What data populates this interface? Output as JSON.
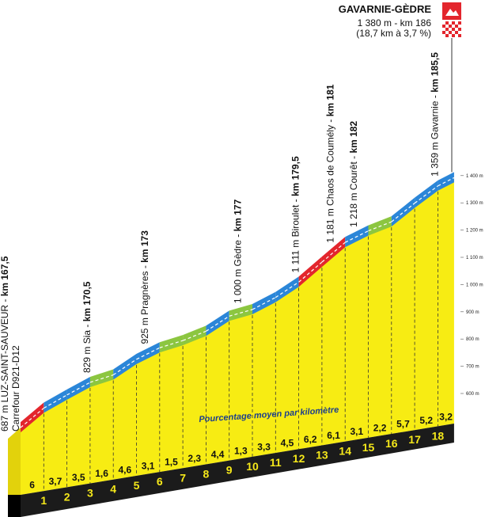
{
  "summit": {
    "name": "GAVARNIE-GÈDRE",
    "elevation_km": "1 380 m - km 186",
    "climb": "(18,7 km à 3,7 %)",
    "climb_length": 18.7
  },
  "subtitle": "Pourcentage moyen par kilomètre",
  "waypoints": [
    {
      "label": "687 m LUZ-SAINT-SAUVEUR - ",
      "km_label": "km 167,5",
      "km": 167.5,
      "elevation": 687,
      "note": "Carrefour D921-D12"
    },
    {
      "label": "829 m Sia - ",
      "km_label": "km 170,5",
      "km": 170.5,
      "elevation": 829
    },
    {
      "label": "925 m Pragnères - ",
      "km_label": "km 173",
      "km": 173,
      "elevation": 925
    },
    {
      "label": "1 000 m Gèdre - ",
      "km_label": "km 177",
      "km": 177,
      "elevation": 1000
    },
    {
      "label": "1 111 m Biroulet - ",
      "km_label": "km 179,5",
      "km": 179.5,
      "elevation": 1111
    },
    {
      "label": "1 181 m Chaos de Coumély - ",
      "km_label": "km 181",
      "km": 181,
      "elevation": 1181
    },
    {
      "label": "1 218 m Courêt - ",
      "km_label": "km 182",
      "km": 182,
      "elevation": 1218
    },
    {
      "label": "1 359 m Gavarnie - ",
      "km_label": "km 185,5",
      "km": 185.5,
      "elevation": 1359
    }
  ],
  "elevation_axis": {
    "ticks": [
      {
        "value": 1400,
        "label": "1 400 m"
      },
      {
        "value": 1300,
        "label": "1 300 m"
      },
      {
        "value": 1200,
        "label": "1 200 m"
      },
      {
        "value": 1100,
        "label": "1 100 m"
      },
      {
        "value": 1000,
        "label": "1 000 m"
      },
      {
        "value": 900,
        "label": "900 m"
      },
      {
        "value": 800,
        "label": "800 m"
      },
      {
        "value": 700,
        "label": "700 m"
      },
      {
        "value": 600,
        "label": "600 m"
      }
    ]
  },
  "segments": [
    {
      "gradient": 6,
      "gradient_label": "6",
      "km": 1,
      "color": "#e3262d"
    },
    {
      "gradient": 3.7,
      "gradient_label": "3,7",
      "km": 2,
      "color": "#2b86d8"
    },
    {
      "gradient": 3.5,
      "gradient_label": "3,5",
      "km": 3,
      "color": "#2b86d8"
    },
    {
      "gradient": 1.6,
      "gradient_label": "1,6",
      "km": 4,
      "color": "#8cc640"
    },
    {
      "gradient": 4.6,
      "gradient_label": "4,6",
      "km": 5,
      "color": "#2b86d8"
    },
    {
      "gradient": 3.1,
      "gradient_label": "3,1",
      "km": 6,
      "color": "#2b86d8"
    },
    {
      "gradient": 1.5,
      "gradient_label": "1,5",
      "km": 7,
      "color": "#8cc640"
    },
    {
      "gradient": 2.3,
      "gradient_label": "2,3",
      "km": 8,
      "color": "#8cc640"
    },
    {
      "gradient": 4.4,
      "gradient_label": "4,4",
      "km": 9,
      "color": "#2b86d8"
    },
    {
      "gradient": 1.3,
      "gradient_label": "1,3",
      "km": 10,
      "color": "#8cc640"
    },
    {
      "gradient": 3.3,
      "gradient_label": "3,3",
      "km": 11,
      "color": "#2b86d8"
    },
    {
      "gradient": 4.5,
      "gradient_label": "4,5",
      "km": 12,
      "color": "#2b86d8"
    },
    {
      "gradient": 6.2,
      "gradient_label": "6,2",
      "km": 13,
      "color": "#e3262d"
    },
    {
      "gradient": 6.1,
      "gradient_label": "6,1",
      "km": 14,
      "color": "#e3262d"
    },
    {
      "gradient": 3.1,
      "gradient_label": "3,1",
      "km": 15,
      "color": "#2b86d8"
    },
    {
      "gradient": 2.2,
      "gradient_label": "2,2",
      "km": 16,
      "color": "#8cc640"
    },
    {
      "gradient": 5.7,
      "gradient_label": "5,7",
      "km": 17,
      "color": "#2b86d8"
    },
    {
      "gradient": 5.2,
      "gradient_label": "5,2",
      "km": 18,
      "color": "#2b86d8"
    },
    {
      "gradient": 3.2,
      "gradient_label": "3,2",
      "color": "#2b86d8"
    }
  ]
}
